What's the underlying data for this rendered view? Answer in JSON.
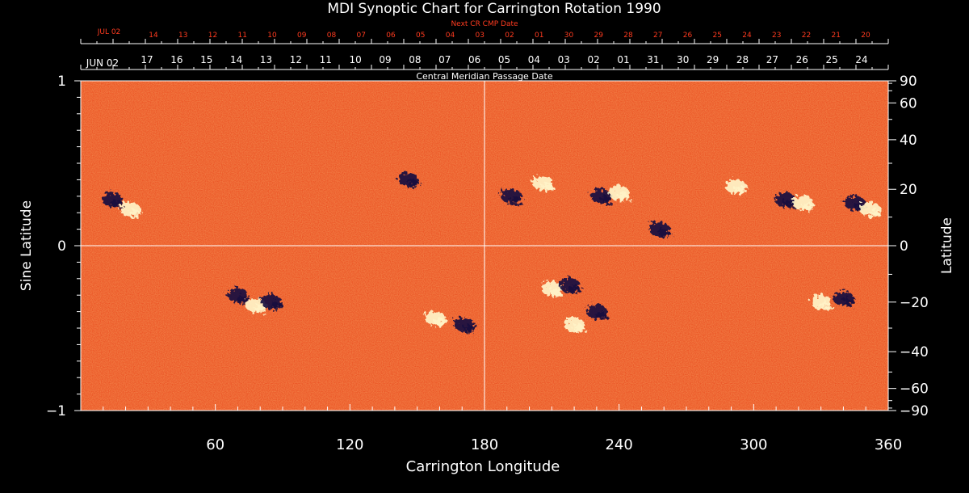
{
  "chart_data": {
    "type": "heatmap",
    "title": "MDI Synoptic Chart for Carrington Rotation 1990",
    "xlabel": "Carrington Longitude",
    "ylabel_left": "Sine Latitude",
    "ylabel_right": "Latitude",
    "xlim": [
      0,
      360
    ],
    "ylim": [
      -1,
      1
    ],
    "x_ticks": [
      "60",
      "120",
      "180",
      "240",
      "300",
      "360"
    ],
    "x_tick_values": [
      60,
      120,
      180,
      240,
      300,
      360
    ],
    "y_ticks_left": [
      {
        "value": 1,
        "label": "1"
      },
      {
        "value": 0,
        "label": "0"
      },
      {
        "value": -1,
        "label": "−1"
      }
    ],
    "y_ticks_right": [
      {
        "deg": 90,
        "label": "90"
      },
      {
        "deg": 60,
        "label": "60"
      },
      {
        "deg": 40,
        "label": "40"
      },
      {
        "deg": 20,
        "label": "20"
      },
      {
        "deg": 0,
        "label": "0"
      },
      {
        "deg": -20,
        "label": "−20"
      },
      {
        "deg": -40,
        "label": "−40"
      },
      {
        "deg": -60,
        "label": "−60"
      },
      {
        "deg": -90,
        "label": "−90"
      }
    ],
    "central_meridian_label": "Central Meridian Passage Date",
    "cmp_month_label": "JUN 02",
    "cmp_dates": [
      "17",
      "16",
      "15",
      "14",
      "13",
      "12",
      "11",
      "10",
      "09",
      "08",
      "07",
      "06",
      "05",
      "04",
      "03",
      "02",
      "01",
      "31",
      "30",
      "29",
      "28",
      "27",
      "26",
      "25",
      "24"
    ],
    "next_cr_label": "Next CR CMP Date",
    "next_cr_month_label": "JUL 02",
    "next_cr_dates": [
      "14",
      "13",
      "12",
      "11",
      "10",
      "09",
      "08",
      "07",
      "06",
      "05",
      "04",
      "03",
      "02",
      "01",
      "30",
      "29",
      "28",
      "27",
      "26",
      "25",
      "24",
      "23",
      "22",
      "21",
      "20"
    ],
    "colors": {
      "background": "#000000",
      "field": "#e8461a",
      "positive": "#fff4c8",
      "negative": "#1a1240",
      "accent": "#ff3b1f"
    },
    "active_regions": [
      {
        "lon": 14,
        "lat": 0.28,
        "polarity": "negative"
      },
      {
        "lon": 22,
        "lat": 0.22,
        "polarity": "positive"
      },
      {
        "lon": 70,
        "lat": -0.3,
        "polarity": "negative"
      },
      {
        "lon": 78,
        "lat": -0.36,
        "polarity": "positive"
      },
      {
        "lon": 85,
        "lat": -0.34,
        "polarity": "negative"
      },
      {
        "lon": 146,
        "lat": 0.4,
        "polarity": "negative"
      },
      {
        "lon": 158,
        "lat": -0.44,
        "polarity": "positive"
      },
      {
        "lon": 171,
        "lat": -0.48,
        "polarity": "negative"
      },
      {
        "lon": 192,
        "lat": 0.3,
        "polarity": "negative"
      },
      {
        "lon": 206,
        "lat": 0.38,
        "polarity": "positive"
      },
      {
        "lon": 210,
        "lat": -0.26,
        "polarity": "positive"
      },
      {
        "lon": 218,
        "lat": -0.24,
        "polarity": "negative"
      },
      {
        "lon": 232,
        "lat": 0.3,
        "polarity": "negative"
      },
      {
        "lon": 240,
        "lat": 0.32,
        "polarity": "positive"
      },
      {
        "lon": 230,
        "lat": -0.4,
        "polarity": "negative"
      },
      {
        "lon": 220,
        "lat": -0.48,
        "polarity": "positive"
      },
      {
        "lon": 258,
        "lat": 0.1,
        "polarity": "negative"
      },
      {
        "lon": 292,
        "lat": 0.36,
        "polarity": "positive"
      },
      {
        "lon": 314,
        "lat": 0.28,
        "polarity": "negative"
      },
      {
        "lon": 322,
        "lat": 0.26,
        "polarity": "positive"
      },
      {
        "lon": 345,
        "lat": 0.26,
        "polarity": "negative"
      },
      {
        "lon": 352,
        "lat": 0.22,
        "polarity": "positive"
      },
      {
        "lon": 330,
        "lat": -0.34,
        "polarity": "positive"
      },
      {
        "lon": 340,
        "lat": -0.32,
        "polarity": "negative"
      }
    ]
  }
}
